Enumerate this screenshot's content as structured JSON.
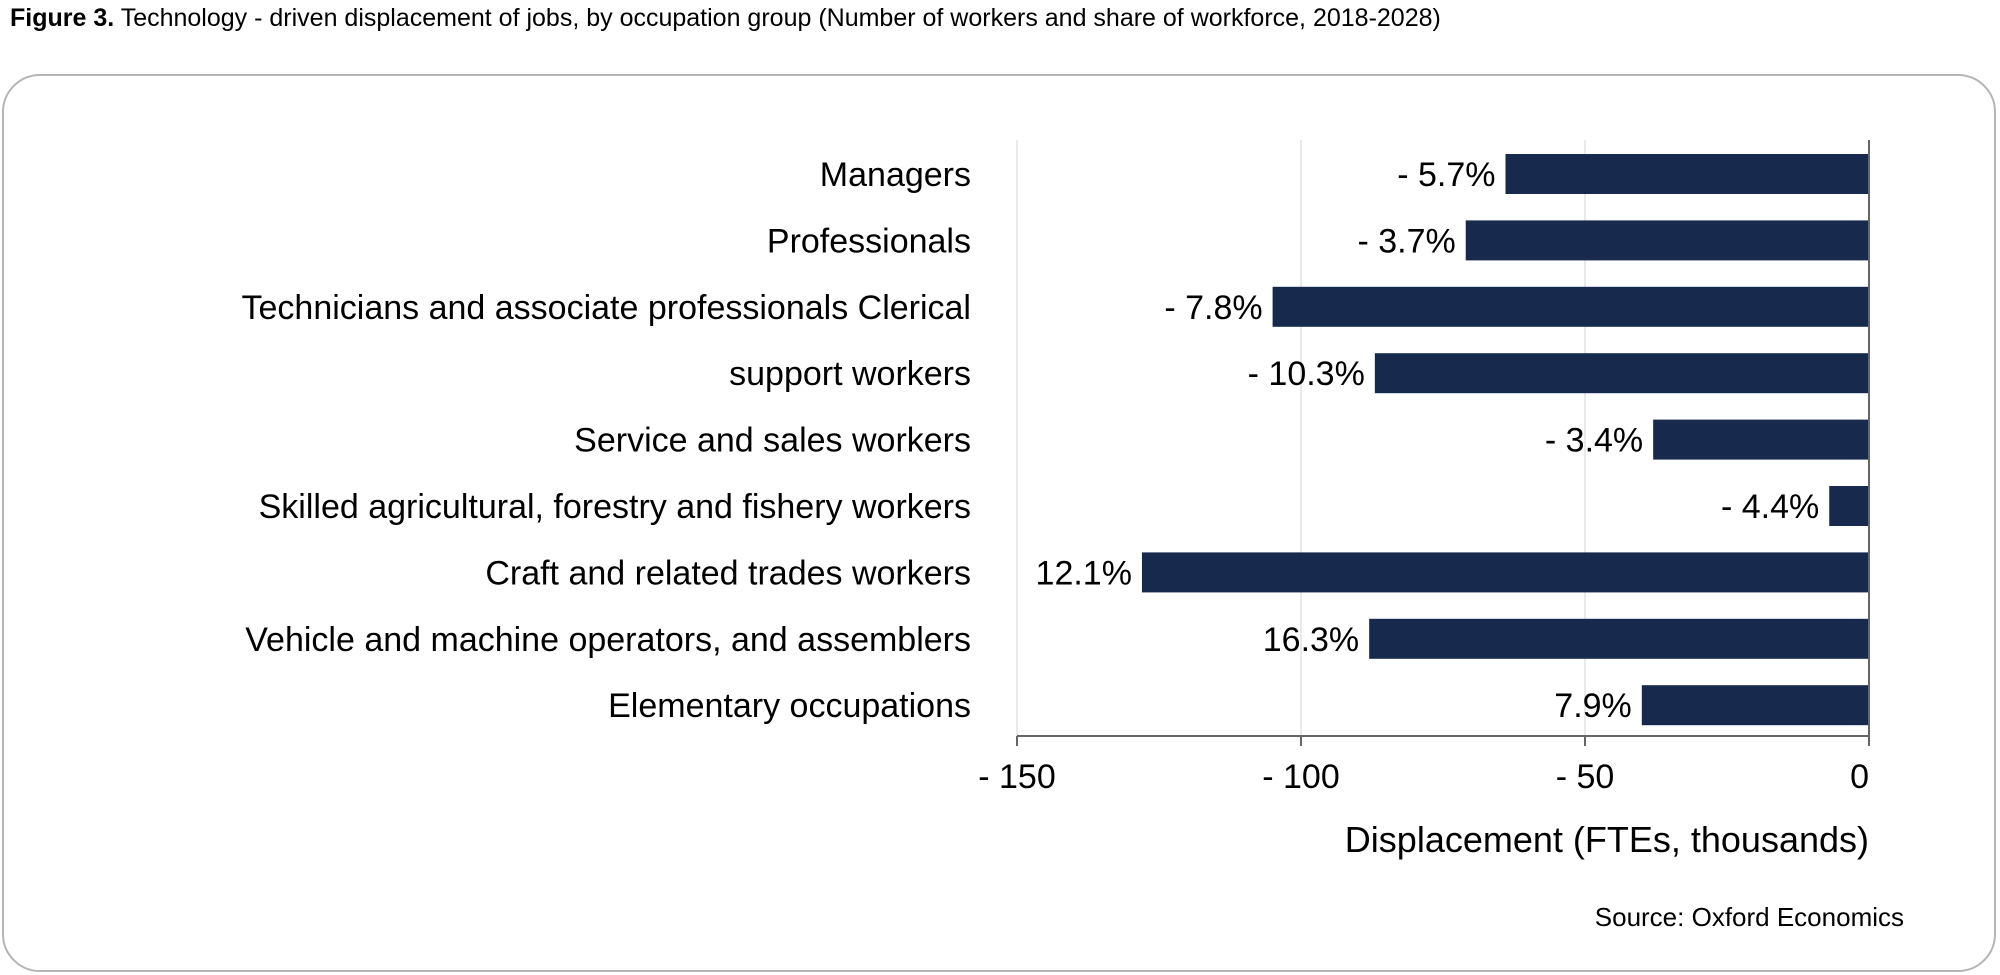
{
  "figure": {
    "number": "Figure 3.",
    "title": "Technology - driven displacement of jobs, by occupation group (Number of workers and share of workforce, 2018-2028)"
  },
  "source": "Source: Oxford Economics",
  "chart_data": {
    "type": "bar",
    "orientation": "horizontal",
    "categories": [
      "Managers",
      "Professionals",
      "Technicians and associate professionals Clerical",
      "support workers",
      "Service and sales workers",
      "Skilled agricultural, forestry and fishery workers",
      "Craft and related trades workers",
      "Vehicle and machine operators, and assemblers",
      "Elementary occupations"
    ],
    "values": [
      -64,
      -71,
      -105,
      -87,
      -38,
      -7,
      -128,
      -88,
      -40
    ],
    "data_labels": [
      "- 5.7%",
      "- 3.7%",
      "- 7.8%",
      "- 10.3%",
      "- 3.4%",
      "- 4.4%",
      "12.1%",
      "16.3%",
      "7.9%"
    ],
    "xlabel": "Displacement (FTEs, thousands)",
    "ylabel": "",
    "xlim": [
      -150,
      0
    ],
    "xticks": [
      -150,
      -100,
      -50,
      0
    ],
    "xtick_labels": [
      "- 150",
      "- 100",
      "- 50",
      "0"
    ],
    "grid": "vertical",
    "bar_color": "#17294d"
  }
}
